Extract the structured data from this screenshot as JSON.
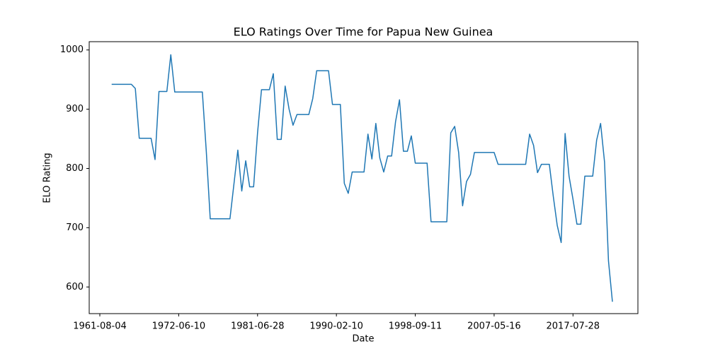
{
  "chart_data": {
    "type": "line",
    "title": "ELO Ratings Over Time for Papua New Guinea",
    "x_label": "Date",
    "y_label": "ELO Rating",
    "categories": [
      "1961-08-04",
      null,
      null,
      null,
      null,
      null,
      null,
      null,
      null,
      null,
      null,
      null,
      null,
      null,
      null,
      null,
      null,
      null,
      null,
      null,
      "1972-06-10",
      null,
      null,
      null,
      null,
      null,
      null,
      null,
      null,
      null,
      null,
      null,
      null,
      null,
      null,
      null,
      null,
      null,
      null,
      null,
      "1981-06-28",
      null,
      null,
      null,
      null,
      null,
      null,
      null,
      null,
      null,
      null,
      null,
      null,
      null,
      null,
      null,
      null,
      null,
      null,
      null,
      "1990-02-10",
      null,
      null,
      null,
      null,
      null,
      null,
      null,
      null,
      null,
      null,
      null,
      null,
      null,
      null,
      null,
      null,
      null,
      null,
      null,
      "1998-09-11",
      null,
      null,
      null,
      null,
      null,
      null,
      null,
      null,
      null,
      null,
      null,
      null,
      null,
      null,
      null,
      null,
      null,
      null,
      null,
      "2007-05-16",
      null,
      null,
      null,
      null,
      null,
      null,
      null,
      null,
      null,
      null,
      null,
      null,
      null,
      null,
      null,
      null,
      null,
      null,
      null,
      "2017-07-28",
      null,
      null,
      null,
      null,
      null,
      null,
      null,
      null,
      null,
      null
    ],
    "series": [
      {
        "name": "ELO Rating",
        "color": "#1f77b4",
        "values": [
          null,
          null,
          null,
          942,
          942,
          942,
          942,
          942,
          942,
          935,
          851,
          851,
          851,
          851,
          815,
          930,
          930,
          930,
          992,
          929,
          929,
          929,
          929,
          929,
          929,
          929,
          929,
          829,
          715,
          715,
          715,
          715,
          715,
          715,
          773,
          831,
          762,
          813,
          769,
          769,
          860,
          933,
          933,
          933,
          960,
          849,
          849,
          939,
          900,
          873,
          891,
          891,
          891,
          891,
          918,
          965,
          965,
          965,
          965,
          908,
          908,
          908,
          775,
          758,
          794,
          794,
          794,
          794,
          858,
          816,
          876,
          818,
          794,
          821,
          821,
          879,
          916,
          829,
          829,
          855,
          809,
          809,
          809,
          809,
          710,
          710,
          710,
          710,
          710,
          860,
          871,
          827,
          737,
          778,
          790,
          827,
          827,
          827,
          827,
          827,
          827,
          807,
          807,
          807,
          807,
          807,
          807,
          807,
          807,
          858,
          839,
          793,
          807,
          807,
          807,
          753,
          704,
          675,
          859,
          787,
          748,
          706,
          706,
          787,
          787,
          787,
          848,
          876,
          811,
          644,
          575
        ]
      }
    ],
    "ylim": [
      555,
      1014
    ],
    "yticks": [
      600,
      700,
      800,
      900,
      1000
    ]
  }
}
